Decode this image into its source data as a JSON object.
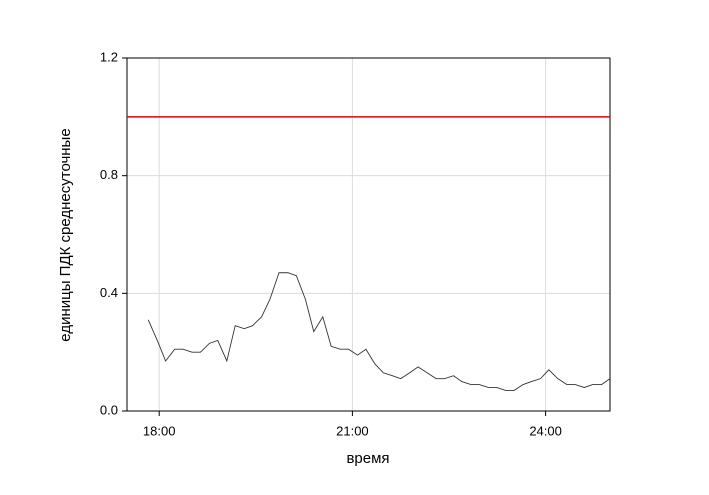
{
  "chart_data": {
    "type": "line",
    "x_label": "время",
    "y_label": "единицы ПДК среднесуточные",
    "x": [
      17.83,
      17.97,
      18.1,
      18.24,
      18.37,
      18.51,
      18.64,
      18.78,
      18.91,
      19.05,
      19.18,
      19.32,
      19.45,
      19.59,
      19.72,
      19.86,
      20.0,
      20.13,
      20.27,
      20.4,
      20.54,
      20.67,
      20.81,
      20.94,
      21.08,
      21.21,
      21.35,
      21.48,
      21.62,
      21.75,
      21.89,
      22.02,
      22.16,
      22.3,
      22.43,
      22.57,
      22.7,
      22.84,
      22.97,
      23.11,
      23.24,
      23.38,
      23.51,
      23.65,
      23.78,
      23.92,
      24.05,
      24.19,
      24.33,
      24.46,
      24.6,
      24.73,
      24.87,
      25.0
    ],
    "values": [
      0.31,
      0.24,
      0.17,
      0.21,
      0.21,
      0.2,
      0.2,
      0.23,
      0.24,
      0.17,
      0.29,
      0.28,
      0.29,
      0.32,
      0.38,
      0.47,
      0.47,
      0.46,
      0.38,
      0.27,
      0.32,
      0.22,
      0.21,
      0.21,
      0.19,
      0.21,
      0.16,
      0.13,
      0.12,
      0.11,
      0.13,
      0.15,
      0.13,
      0.11,
      0.11,
      0.12,
      0.1,
      0.09,
      0.09,
      0.08,
      0.08,
      0.07,
      0.07,
      0.09,
      0.1,
      0.11,
      0.14,
      0.11,
      0.09,
      0.09,
      0.08,
      0.09,
      0.09,
      0.11
    ],
    "color": "#333333",
    "reference_line": {
      "value": 1.0,
      "color": "#e00000"
    },
    "xlim": [
      17.5,
      25
    ],
    "xticks": [
      {
        "value": 18,
        "label": "18:00"
      },
      {
        "value": 21,
        "label": "21:00"
      },
      {
        "value": 24,
        "label": "24:00"
      }
    ],
    "ylim": [
      0,
      1.2
    ],
    "yticks": [
      {
        "value": 0,
        "label": "0.0"
      },
      0.4,
      0.8,
      1.2
    ],
    "grid": true
  }
}
